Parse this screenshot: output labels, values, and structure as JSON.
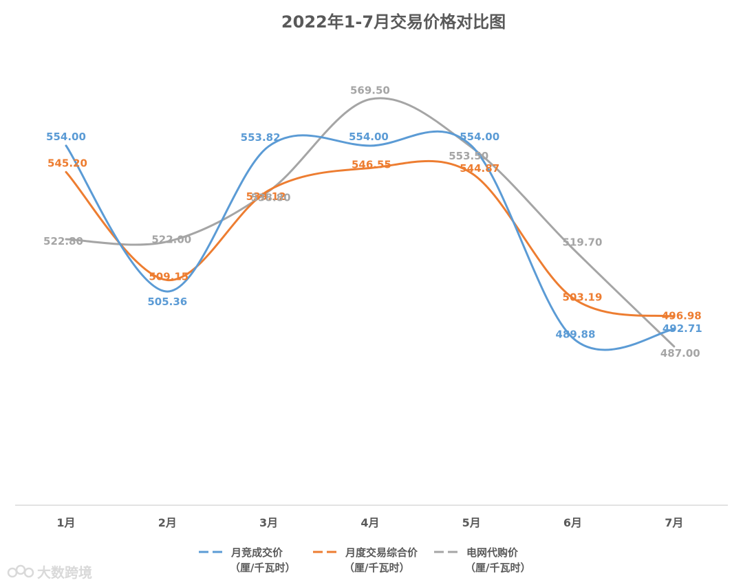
{
  "chart_data": {
    "type": "line",
    "title": "2022年1-7月交易价格对比图",
    "categories": [
      "1月",
      "2月",
      "3月",
      "4月",
      "5月",
      "6月",
      "7月"
    ],
    "series": [
      {
        "name": "月竞成交价",
        "unit": "（厘/千瓦时）",
        "color": "#5B9BD5",
        "values": [
          554.0,
          505.36,
          553.82,
          554.0,
          554.0,
          489.88,
          492.71
        ],
        "labels": [
          "554.00",
          "505.36",
          "553.82",
          "554.00",
          "554.00",
          "489.88",
          "492.71"
        ]
      },
      {
        "name": "月度交易综合价",
        "unit": "（厘/千瓦时）",
        "color": "#ED7D31",
        "values": [
          545.2,
          509.15,
          539.12,
          546.55,
          544.87,
          503.19,
          496.98
        ],
        "labels": [
          "545.20",
          "509.15",
          "539.12",
          "546.55",
          "544.87",
          "503.19",
          "496.98"
        ]
      },
      {
        "name": "电网代购价",
        "unit": "（厘/千瓦时）",
        "color": "#A5A5A5",
        "values": [
          522.8,
          522.0,
          538.8,
          569.5,
          553.5,
          519.7,
          487.0
        ],
        "labels": [
          "522.80",
          "522.00",
          "538.80",
          "569.50",
          "553.50",
          "519.70",
          "487.00"
        ]
      }
    ],
    "smooth": true,
    "grid": false,
    "legend_position": "bottom",
    "y_axis_visible": false
  },
  "watermark": {
    "text": "大数跨境",
    "icon": "logo-icon"
  }
}
